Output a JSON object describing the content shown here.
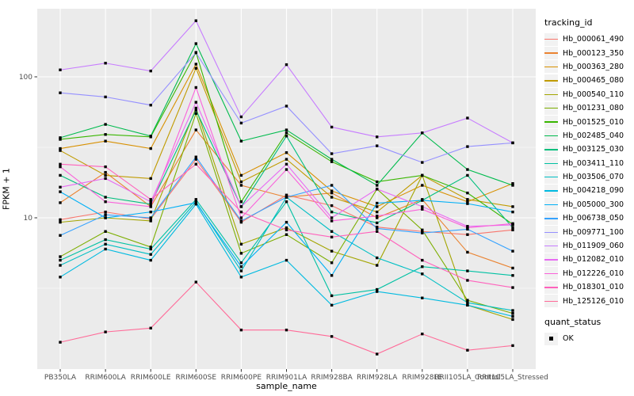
{
  "chart_data": {
    "type": "line",
    "title": "",
    "xlabel": "sample_name",
    "ylabel": "FPKM + 1",
    "y_scale": "log10",
    "y_ticks": [
      100,
      10
    ],
    "y_minor_ticks": [
      31.62,
      3.162
    ],
    "ylim": [
      0.85,
      305
    ],
    "grid": true,
    "legend_position": "right",
    "point_shape": "square",
    "point_color": "#000000",
    "categories": [
      "PB350LA",
      "RRIM600LA",
      "RRIM600LE",
      "RRIM600SE",
      "RRIM600PE",
      "RRIM901LA",
      "RRIM928BA",
      "RRIM928LA",
      "RRIM928LE",
      "RRII105LA_Control",
      "RRII105LA_Stressed"
    ],
    "series": [
      {
        "name": "Hb_000061_490",
        "color": "#F8766D",
        "values": [
          9.7,
          11,
          9.8,
          26,
          9.3,
          14.5,
          12.2,
          8.6,
          8.0,
          7.6,
          8.2
        ]
      },
      {
        "name": "Hb_000123_350",
        "color": "#EA8331",
        "values": [
          12.8,
          21,
          12,
          42,
          17,
          14,
          15,
          10,
          13.5,
          5.7,
          4.4
        ]
      },
      {
        "name": "Hb_000363_280",
        "color": "#D89000",
        "values": [
          31,
          35,
          31,
          123,
          20,
          29,
          15.5,
          12,
          17,
          13,
          17.5
        ]
      },
      {
        "name": "Hb_000465_080",
        "color": "#C09B00",
        "values": [
          30,
          20,
          19,
          115,
          18,
          26,
          14,
          11,
          20,
          13.5,
          12
        ]
      },
      {
        "name": "Hb_000540_110",
        "color": "#A3A500",
        "values": [
          9.3,
          10,
          9.5,
          60,
          6.5,
          8.5,
          5.8,
          4.6,
          20,
          2.4,
          1.9
        ]
      },
      {
        "name": "Hb_001231_080",
        "color": "#7CAE00",
        "values": [
          5.3,
          8,
          6.2,
          55,
          5.6,
          7.6,
          4.8,
          16,
          8.2,
          2.6,
          2.1
        ]
      },
      {
        "name": "Hb_001525_010",
        "color": "#39B600",
        "values": [
          36,
          39,
          37.5,
          149,
          13,
          40,
          25,
          18,
          20,
          15,
          9
        ]
      },
      {
        "name": "Hb_002485_040",
        "color": "#00BB4E",
        "values": [
          37,
          46,
          38,
          172,
          35,
          42,
          26,
          17,
          40,
          22,
          17
        ]
      },
      {
        "name": "Hb_003125_030",
        "color": "#00BF7D",
        "values": [
          20,
          14,
          12.5,
          58,
          12,
          38,
          11,
          9.2,
          13.3,
          20,
          8.5
        ]
      },
      {
        "name": "Hb_003411_110",
        "color": "#00C1A3",
        "values": [
          5.0,
          7,
          6.0,
          13.5,
          4.8,
          13,
          2.8,
          3.1,
          4.5,
          4.2,
          3.9
        ]
      },
      {
        "name": "Hb_003506_070",
        "color": "#00BFC4",
        "values": [
          4.6,
          6.5,
          5.5,
          13,
          4.2,
          14,
          8,
          5.2,
          4.0,
          2.5,
          2.2
        ]
      },
      {
        "name": "Hb_004218_090",
        "color": "#00BAE0",
        "values": [
          3.8,
          6,
          5.0,
          12.5,
          3.8,
          5.0,
          2.4,
          3.0,
          2.7,
          2.4,
          2.0
        ]
      },
      {
        "name": "Hb_005000_300",
        "color": "#00B0F6",
        "values": [
          15.3,
          10,
          11,
          12.8,
          4.5,
          9.3,
          3.9,
          12.7,
          13.3,
          12.6,
          11
        ]
      },
      {
        "name": "Hb_006738_050",
        "color": "#35A2FF",
        "values": [
          7.5,
          10.5,
          10,
          27,
          9.5,
          14,
          17,
          8.4,
          7.8,
          8.3,
          5.8
        ]
      },
      {
        "name": "Hb_009771_100",
        "color": "#9590FF",
        "values": [
          77,
          72,
          63,
          148,
          47,
          62,
          28.5,
          32.4,
          24.7,
          32,
          34
        ]
      },
      {
        "name": "Hb_011909_060",
        "color": "#C77CFF",
        "values": [
          112,
          125,
          110,
          250,
          52,
          122,
          44,
          37.5,
          40,
          51,
          34
        ]
      },
      {
        "name": "Hb_012082_010",
        "color": "#E76BF3",
        "values": [
          16.5,
          19,
          13,
          66,
          12,
          24,
          10,
          16,
          12,
          8.7,
          8.9
        ]
      },
      {
        "name": "Hb_012226_010",
        "color": "#FA62DB",
        "values": [
          23,
          13,
          12,
          84,
          10,
          22,
          9.5,
          10.3,
          11.5,
          8.5,
          9.1
        ]
      },
      {
        "name": "Hb_018301_010",
        "color": "#FF62BC",
        "values": [
          24,
          23,
          13.5,
          24,
          11,
          8.2,
          7.3,
          8,
          5,
          3.6,
          3.2
        ]
      },
      {
        "name": "Hb_125126_010",
        "color": "#FF6A98",
        "values": [
          1.31,
          1.55,
          1.65,
          3.5,
          1.6,
          1.6,
          1.44,
          1.08,
          1.5,
          1.15,
          1.24
        ]
      }
    ],
    "legend": {
      "color_title": "tracking_id",
      "shape_title": "quant_status",
      "shape_entries": [
        "OK"
      ]
    }
  },
  "style": {
    "panel_bg": "#EBEBEB",
    "grid_color": "#FFFFFF",
    "tick_text_color": "#4D4D4D",
    "tick_mark_color": "#333333",
    "legend_key_bg": "#F2F2F2"
  }
}
